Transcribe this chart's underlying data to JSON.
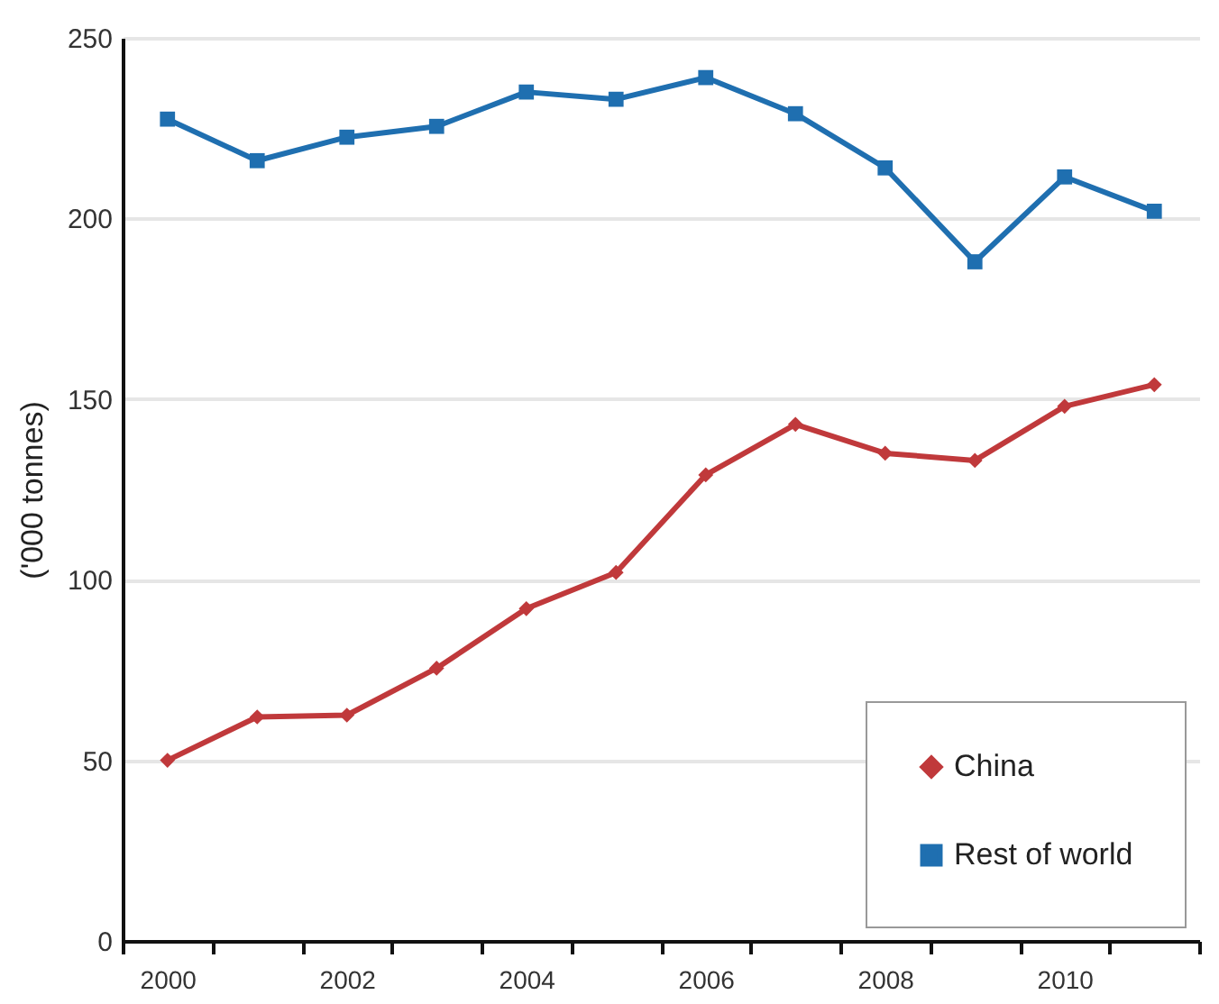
{
  "chart_data": {
    "type": "line",
    "ylabel": "('000 tonnes)",
    "categories": [
      "2000",
      null,
      "2002",
      null,
      "2004",
      null,
      "2006",
      null,
      "2008",
      null,
      "2010",
      null
    ],
    "series": [
      {
        "name": "China",
        "color": "#c0393b",
        "marker": "diamond",
        "values": [
          50,
          62,
          62.5,
          75.5,
          92,
          102,
          129,
          143,
          135,
          133,
          148,
          154
        ]
      },
      {
        "name": "Rest of world",
        "color": "#1f6fb0",
        "marker": "square",
        "values": [
          227.5,
          216,
          222.5,
          225.5,
          235,
          233,
          239,
          229,
          214,
          188,
          211.5,
          202
        ]
      }
    ],
    "ylim": [
      0,
      250
    ],
    "yticks": [
      0,
      50,
      100,
      150,
      200,
      250
    ],
    "grid": "y",
    "legend": "bottom right"
  }
}
